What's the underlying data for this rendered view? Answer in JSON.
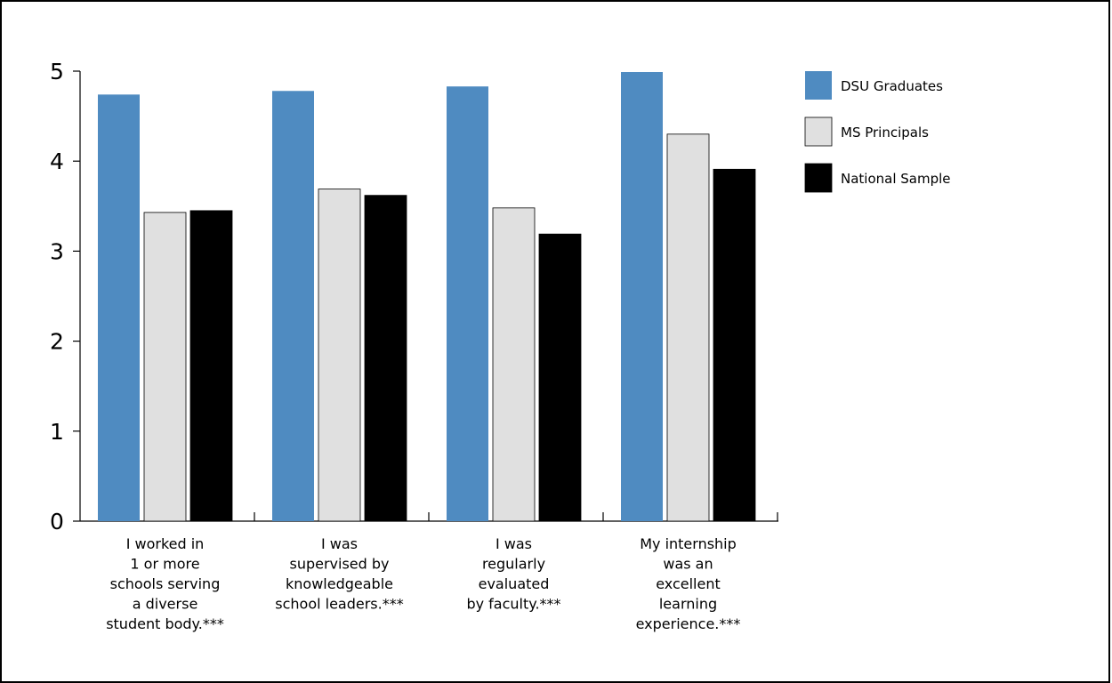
{
  "chart_data": {
    "type": "bar",
    "categories": [
      [
        "I worked in",
        "1 or more",
        "schools serving",
        "a diverse",
        "student body.***"
      ],
      [
        "I was",
        "supervised  by",
        "knowledgeable",
        "school leaders.***"
      ],
      [
        "I was",
        "regularly",
        "evaluated",
        "by faculty.***"
      ],
      [
        "My internship",
        "was an",
        "excellent",
        "learning",
        "experience.***"
      ]
    ],
    "series": [
      {
        "name": "DSU Graduates",
        "color": "#4f8bc1",
        "values": [
          4.74,
          4.78,
          4.83,
          4.99
        ]
      },
      {
        "name": "MS Principals",
        "color": "#e0e0e0",
        "values": [
          3.43,
          3.69,
          3.48,
          4.3
        ]
      },
      {
        "name": "National Sample",
        "color": "#000000",
        "values": [
          3.45,
          3.62,
          3.19,
          3.91
        ]
      }
    ],
    "ylim": [
      0,
      5
    ],
    "yticks": [
      "0",
      "1",
      "2",
      "3",
      "4",
      "5"
    ],
    "title": "",
    "xlabel": "",
    "ylabel": "",
    "legend": "top-right",
    "grid": false
  }
}
